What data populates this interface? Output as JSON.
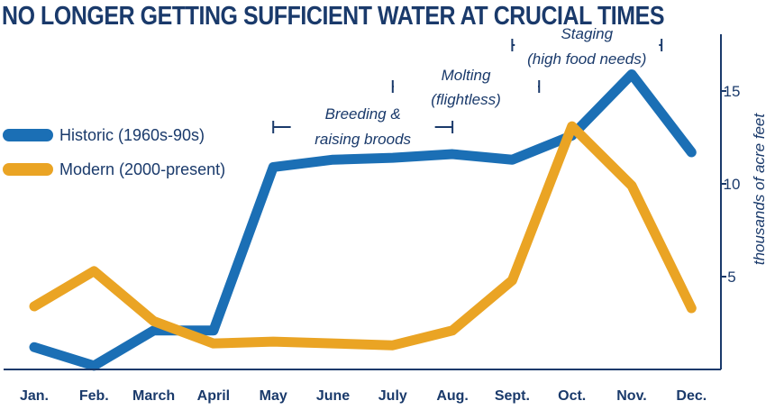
{
  "chart_data": {
    "type": "line",
    "title": "NO LONGER GETTING SUFFICIENT WATER AT CRUCIAL TIMES",
    "ylabel": "thousands of acre feet",
    "ylim": [
      0,
      18
    ],
    "yticks": [
      5,
      10,
      15
    ],
    "categories": [
      "Jan.",
      "Feb.",
      "March",
      "April",
      "May",
      "June",
      "July",
      "Aug.",
      "Sept.",
      "Oct.",
      "Nov.",
      "Dec."
    ],
    "series": [
      {
        "name": "Historic (1960s-90s)",
        "color": "#1b6fb5",
        "values": [
          1.2,
          0.2,
          2.1,
          2.1,
          10.9,
          11.3,
          11.4,
          11.6,
          11.3,
          12.6,
          15.9,
          11.7
        ]
      },
      {
        "name": "Modern (2000-present)",
        "color": "#eaa424",
        "values": [
          3.4,
          5.3,
          2.6,
          1.4,
          1.5,
          1.4,
          1.3,
          2.1,
          4.8,
          13.1,
          9.9,
          3.3
        ]
      }
    ],
    "legend_position": "left",
    "annotations": [
      {
        "lines": [
          "Breeding &",
          "raising broods"
        ],
        "from": 4.0,
        "to": 7.0
      },
      {
        "lines": [
          "Molting",
          "(flightless)"
        ],
        "from": 6.0,
        "to": 8.45
      },
      {
        "lines": [
          "Staging",
          "(high food needs)"
        ],
        "from": 8.0,
        "to": 10.5
      }
    ],
    "grid": false
  }
}
